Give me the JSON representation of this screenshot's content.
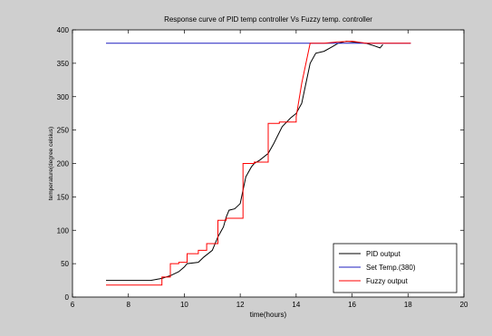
{
  "chart_data": {
    "type": "line",
    "title": "Response curve of PID temp controller Vs Fuzzy temp. controller",
    "xlabel": "time(hours)",
    "ylabel": "temperature(degree celsius)",
    "xlim": [
      6,
      20
    ],
    "ylim": [
      0,
      400
    ],
    "xticks": [
      6,
      8,
      10,
      12,
      14,
      16,
      18,
      20
    ],
    "yticks": [
      0,
      50,
      100,
      150,
      200,
      250,
      300,
      350,
      400
    ],
    "grid": false,
    "legend_position": "bottom-right",
    "series": [
      {
        "name": "PID output",
        "color": "#000000",
        "x": [
          7.2,
          8.8,
          9.2,
          9.5,
          9.8,
          10.0,
          10.1,
          10.5,
          10.7,
          11.0,
          11.2,
          11.4,
          11.5,
          11.6,
          11.8,
          12.0,
          12.1,
          12.2,
          12.4,
          12.5,
          12.7,
          13.0,
          13.2,
          13.5,
          13.8,
          14.0,
          14.2,
          14.4,
          14.5,
          14.7,
          15.0,
          15.3,
          15.5,
          15.8,
          16.0,
          16.5,
          16.8,
          17.0,
          17.1
        ],
        "y": [
          25,
          25,
          28,
          32,
          38,
          45,
          50,
          52,
          60,
          70,
          90,
          105,
          120,
          130,
          132,
          140,
          160,
          180,
          195,
          200,
          205,
          215,
          230,
          255,
          268,
          275,
          290,
          330,
          350,
          365,
          368,
          375,
          380,
          383,
          382,
          380,
          376,
          373,
          378
        ]
      },
      {
        "name": "Set Temp.(380)",
        "color": "#1f1fbf",
        "x": [
          7.2,
          18.1
        ],
        "y": [
          380,
          380
        ]
      },
      {
        "name": "Fuzzy output",
        "color": "#ff0000",
        "x": [
          7.2,
          9.2,
          9.2,
          9.5,
          9.5,
          9.8,
          9.8,
          10.1,
          10.1,
          10.5,
          10.5,
          10.8,
          10.8,
          11.2,
          11.2,
          11.5,
          11.5,
          12.1,
          12.1,
          12.5,
          12.5,
          13.0,
          13.0,
          13.4,
          13.4,
          14.0,
          14.0,
          14.2,
          14.5,
          15.0,
          15.5,
          16.0,
          16.5,
          17.0,
          18.1
        ],
        "y": [
          18,
          18,
          30,
          30,
          50,
          50,
          52,
          52,
          65,
          65,
          70,
          70,
          80,
          80,
          115,
          115,
          118,
          118,
          200,
          200,
          202,
          202,
          260,
          260,
          262,
          262,
          270,
          320,
          380,
          380,
          382,
          383,
          380,
          380,
          380
        ]
      }
    ]
  }
}
